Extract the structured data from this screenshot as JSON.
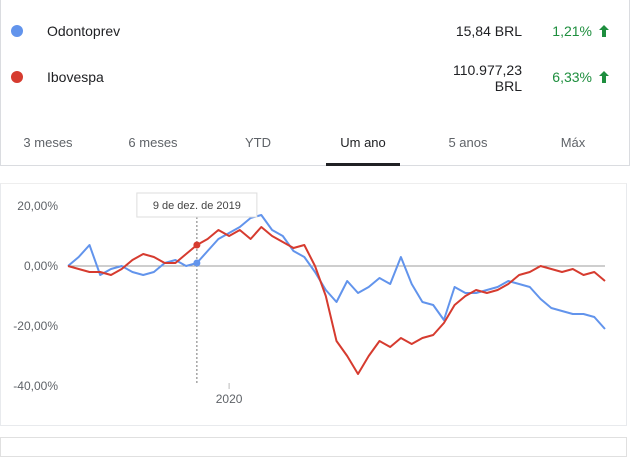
{
  "rows": [
    {
      "name": "Odontoprev",
      "price": "15,84 BRL",
      "change": "1,21%"
    },
    {
      "name": "Ibovespa",
      "price": "110.977,23 BRL",
      "change": "6,33%"
    }
  ],
  "tabs": [
    "3 meses",
    "6 meses",
    "YTD",
    "Um ano",
    "5 anos",
    "Máx"
  ],
  "chart_data": {
    "type": "line",
    "x": [
      2019.7,
      2019.72,
      2019.74,
      2019.76,
      2019.78,
      2019.8,
      2019.82,
      2019.84,
      2019.86,
      2019.88,
      2019.9,
      2019.92,
      2019.94,
      2019.96,
      2019.98,
      2020.0,
      2020.02,
      2020.04,
      2020.06,
      2020.08,
      2020.1,
      2020.12,
      2020.14,
      2020.16,
      2020.18,
      2020.2,
      2020.22,
      2020.24,
      2020.26,
      2020.28,
      2020.3,
      2020.32,
      2020.34,
      2020.36,
      2020.38,
      2020.4,
      2020.42,
      2020.44,
      2020.46,
      2020.48,
      2020.5,
      2020.52,
      2020.54,
      2020.56,
      2020.58,
      2020.6,
      2020.62,
      2020.64,
      2020.66,
      2020.68,
      2020.7
    ],
    "series": [
      {
        "name": "Odontoprev",
        "color": "#6294ec",
        "values": [
          0,
          3,
          7,
          -3,
          -1,
          0,
          -2,
          -3,
          -2,
          1,
          2,
          0,
          1,
          5,
          9,
          11,
          13,
          16,
          17,
          12,
          10,
          5,
          3,
          -2,
          -8,
          -12,
          -5,
          -9,
          -7,
          -4,
          -6,
          3,
          -6,
          -12,
          -13,
          -18,
          -7,
          -9,
          -9,
          -8,
          -7,
          -5,
          -6,
          -7,
          -11,
          -14,
          -15,
          -16,
          -16,
          -17,
          -21
        ]
      },
      {
        "name": "Ibovespa",
        "color": "#d63b2f",
        "values": [
          0,
          -1,
          -2,
          -2,
          -3,
          -1,
          2,
          4,
          3,
          1,
          1,
          4,
          7,
          9,
          12,
          10,
          12,
          9,
          13,
          10,
          8,
          6,
          7,
          0,
          -10,
          -25,
          -30,
          -36,
          -30,
          -25,
          -27,
          -24,
          -26,
          -24,
          -23,
          -19,
          -13,
          -10,
          -8,
          -9,
          -8,
          -6,
          -3,
          -2,
          0,
          -1,
          -2,
          -1,
          -3,
          -2,
          -5
        ]
      }
    ],
    "xlim": [
      2019.7,
      2020.7
    ],
    "xticks": [
      2020
    ],
    "ylim": [
      -43,
      25
    ],
    "yticks": [
      {
        "value": 20,
        "label": "20,00%"
      },
      {
        "value": 0,
        "label": "0,00%"
      },
      {
        "value": -20,
        "label": "-20,00%"
      },
      {
        "value": -40,
        "label": "-40,00%"
      }
    ],
    "grid": false,
    "hover": {
      "label": "9 de dez. de 2019",
      "x": 2019.94
    }
  }
}
